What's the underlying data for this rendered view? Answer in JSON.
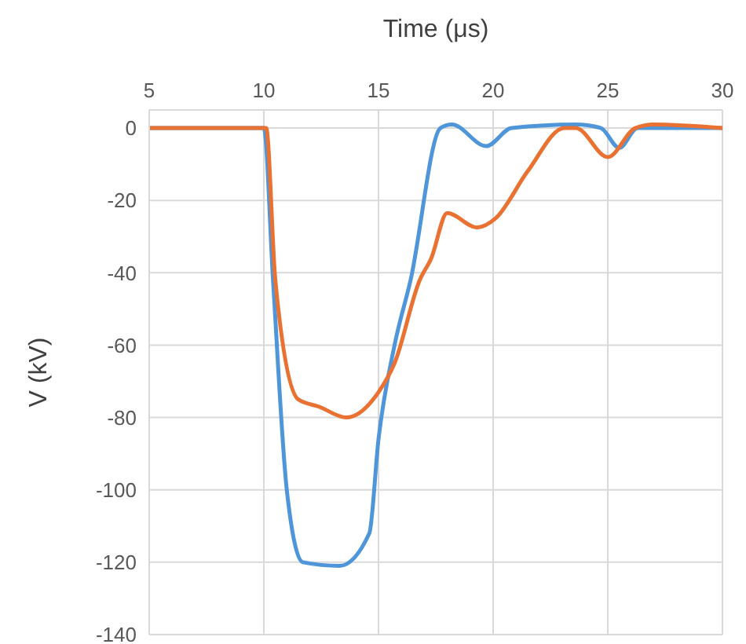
{
  "chart_data": {
    "type": "line",
    "xlabel": "Time (μs)",
    "ylabel": "V (kV)",
    "xlim": [
      5,
      30
    ],
    "xticks": [
      5,
      10,
      15,
      20,
      25,
      30
    ],
    "ylim": [
      -140,
      5
    ],
    "yticks": [
      -140,
      -120,
      -100,
      -80,
      -60,
      -40,
      -20,
      0
    ],
    "grid": true,
    "series": [
      {
        "color": "#4e95d9",
        "x": [
          5,
          10,
          10.4,
          11,
          11.7,
          13.3,
          14.6,
          15,
          15.7,
          16.4,
          17.7,
          18.2,
          19.7,
          20.8,
          23.6,
          24.7,
          25.5,
          26.3,
          30
        ],
        "values": [
          0,
          0,
          -42,
          -100,
          -120,
          -121,
          -112,
          -86,
          -60,
          -42,
          0,
          1,
          -5,
          0,
          1,
          0,
          -5.5,
          0,
          0
        ]
      },
      {
        "color": "#e97132",
        "x": [
          5,
          10.1,
          10.5,
          11.5,
          12.4,
          13.6,
          15,
          15.7,
          16.8,
          17.3,
          18,
          19.3,
          20.1,
          21.5,
          23.1,
          23.6,
          25,
          26.2,
          27,
          30
        ],
        "values": [
          0,
          0,
          -42,
          -75,
          -77,
          -80,
          -73,
          -65,
          -42,
          -36,
          -23.5,
          -27.5,
          -25,
          -12,
          0,
          0,
          -8,
          0,
          1,
          0
        ]
      }
    ]
  }
}
